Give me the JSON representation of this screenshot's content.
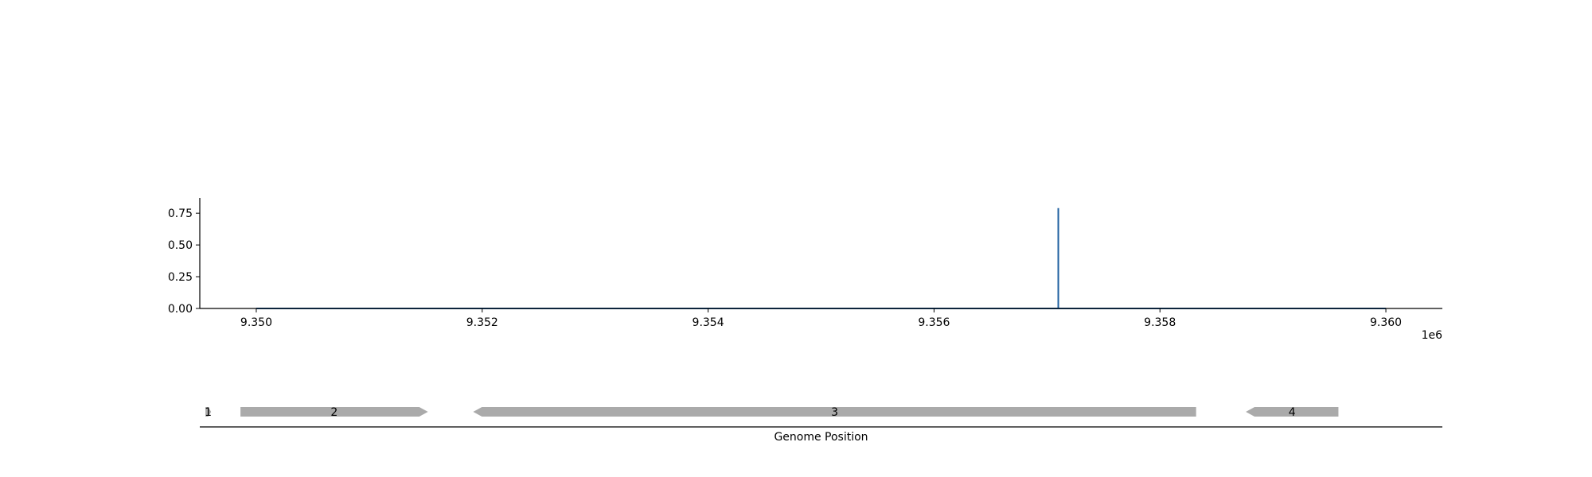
{
  "chart_data": [
    {
      "type": "line",
      "x_range": [
        9349500,
        9360500
      ],
      "ylim": [
        0,
        0.87
      ],
      "y_ticks": [
        0.0,
        0.25,
        0.5,
        0.75
      ],
      "y_tick_labels": [
        "0.00",
        "0.25",
        "0.50",
        "0.75"
      ],
      "x_ticks": [
        9350000,
        9352000,
        9354000,
        9356000,
        9358000,
        9360000
      ],
      "x_tick_labels": [
        "9.350",
        "9.352",
        "9.354",
        "9.356",
        "9.358",
        "9.360"
      ],
      "x_offset_label": "1e6",
      "series": [
        {
          "color": "#1f5fa0",
          "x": [
            9350000,
            9357100,
            9357100,
            9357100,
            9360000
          ],
          "y": [
            0.0,
            0.0,
            0.79,
            0.0,
            0.0
          ]
        }
      ],
      "grid": false
    },
    {
      "type": "gene-track",
      "xlabel": "Genome Position",
      "x_range": [
        9349500,
        9360500
      ],
      "feature_color": "#aaaaaa",
      "features": [
        {
          "label": "1",
          "start": 9349550,
          "end": 9349600,
          "strand": "+"
        },
        {
          "label": "2",
          "start": 9349860,
          "end": 9351520,
          "strand": "+"
        },
        {
          "label": "3",
          "start": 9351920,
          "end": 9358320,
          "strand": "-"
        },
        {
          "label": "4",
          "start": 9358760,
          "end": 9359580,
          "strand": "-"
        }
      ]
    }
  ]
}
